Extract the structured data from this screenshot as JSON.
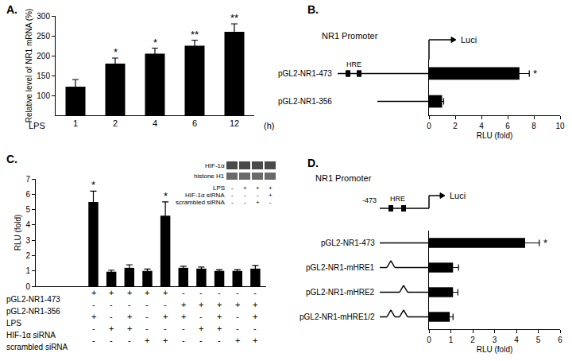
{
  "chart_data": [
    {
      "title": "A.",
      "type": "bar",
      "color": "#000000",
      "grid": false,
      "categories": [
        "1",
        "2",
        "4",
        "6",
        "12"
      ],
      "values": [
        122,
        180,
        205,
        225,
        260
      ],
      "errors": [
        18,
        14,
        14,
        14,
        20
      ],
      "significance": [
        null,
        "*",
        "*",
        "**",
        "**"
      ],
      "y_label": "Relative level of NR1 mRNA (%)",
      "x_label": "LPS",
      "x_label_right": "(h)",
      "ylim": [
        50,
        300
      ],
      "yticks": [
        100,
        150,
        200,
        250,
        300
      ]
    },
    {
      "title": "B.",
      "type": "bar",
      "orientation": "horizontal",
      "color": "#000000",
      "grid": false,
      "heading": "NR1 Promoter",
      "reporter": "Luci",
      "element": "HRE",
      "categories": [
        "pGL2-NR1-473",
        "pGL2-NR1-356"
      ],
      "hre_count": [
        2,
        0
      ],
      "values": [
        6.9,
        1.0
      ],
      "errors": [
        0.75,
        0.12
      ],
      "significance": [
        "*",
        null
      ],
      "x_label": "RLU (fold)",
      "xlim": [
        0,
        10
      ],
      "xticks": [
        0,
        2,
        4,
        6,
        8,
        10
      ]
    },
    {
      "title": "C.",
      "type": "bar",
      "color": "#000000",
      "grid": false,
      "tick_labels": "y",
      "categories": [
        null,
        null,
        null,
        null,
        null,
        null,
        null,
        null,
        null,
        null
      ],
      "values": [
        5.5,
        0.95,
        1.2,
        1.0,
        4.6,
        1.2,
        1.15,
        1.0,
        1.0,
        1.15
      ],
      "errors": [
        0.7,
        0.1,
        0.2,
        0.12,
        0.9,
        0.1,
        0.1,
        0.08,
        0.08,
        0.2
      ],
      "significance": [
        "*",
        null,
        null,
        null,
        "*",
        null,
        null,
        null,
        null,
        null
      ],
      "y_label": "RLU (fold)",
      "ylim": [
        0,
        7
      ],
      "yticks": [
        0,
        1,
        2,
        3,
        4,
        5,
        6,
        7
      ],
      "conditions": [
        {
          "label": "pGL2-NR1-473",
          "marks": [
            "+",
            "+",
            "+",
            "+",
            "+",
            "-",
            "-",
            "-",
            "-",
            "-"
          ]
        },
        {
          "label": "pGL2-NR1-356",
          "marks": [
            "-",
            "-",
            "-",
            "-",
            "-",
            "+",
            "+",
            "+",
            "+",
            "+"
          ]
        },
        {
          "label": "LPS",
          "marks": [
            "+",
            "-",
            "+",
            "-",
            "+",
            "+",
            "-",
            "+",
            "-",
            "+"
          ]
        },
        {
          "label": "HIF-1α siRNA",
          "marks": [
            "-",
            "+",
            "+",
            "-",
            "-",
            "-",
            "+",
            "+",
            "-",
            "-"
          ]
        },
        {
          "label": "scrambled siRNA",
          "marks": [
            "-",
            "-",
            "-",
            "+",
            "+",
            "-",
            "-",
            "-",
            "+",
            "+"
          ]
        }
      ],
      "inset": {
        "bands": [
          "HIF-1α",
          "histone H1"
        ],
        "conditions": [
          {
            "label": "LPS",
            "marks": [
              "-",
              "+",
              "+",
              "+"
            ]
          },
          {
            "label": "HIF-1α siRNA",
            "marks": [
              "-",
              "-",
              "-",
              "+"
            ]
          },
          {
            "label": "scrambled siRNA",
            "marks": [
              "-",
              "-",
              "+",
              "-"
            ]
          }
        ]
      }
    },
    {
      "title": "D.",
      "type": "bar",
      "orientation": "horizontal",
      "color": "#000000",
      "grid": false,
      "heading": "NR1 Promoter",
      "reporter": "Luci",
      "element": "HRE",
      "start": "-473",
      "categories": [
        "pGL2-NR1-473",
        "pGL2-NR1-mHRE1",
        "pGL2-NR1-mHRE2",
        "pGL2-NR1-mHRE1/2"
      ],
      "mutated_hre": [
        [],
        [
          1
        ],
        [
          2
        ],
        [
          1,
          2
        ]
      ],
      "values": [
        4.4,
        1.1,
        1.1,
        0.95
      ],
      "errors": [
        0.65,
        0.25,
        0.22,
        0.15
      ],
      "significance": [
        "*",
        null,
        null,
        null
      ],
      "x_label": "RLU (fold)",
      "xlim": [
        0,
        6
      ],
      "xticks": [
        0,
        1,
        2,
        3,
        4,
        5,
        6
      ]
    }
  ]
}
